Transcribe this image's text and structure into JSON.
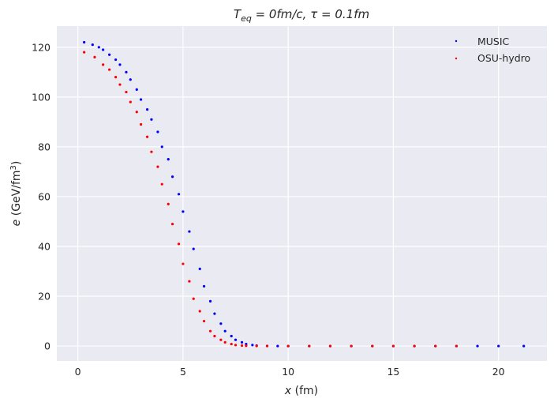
{
  "chart_data": {
    "type": "scatter",
    "title": {
      "base": "T",
      "sub": "eq",
      "rest": " = 0fm/c, τ = 0.1fm"
    },
    "xlabel": {
      "var": "x",
      "unit": " (fm)"
    },
    "ylabel": {
      "var": "e",
      "unit_open": " (GeV/fm",
      "sup": "3",
      "unit_close": ")"
    },
    "xlim": [
      -1,
      22.3
    ],
    "ylim": [
      -6,
      128.5
    ],
    "xticks": [
      0,
      5,
      10,
      15,
      20
    ],
    "xtick_labels": [
      "0",
      "5",
      "10",
      "15",
      "20"
    ],
    "yticks": [
      0,
      20,
      40,
      60,
      80,
      100,
      120
    ],
    "ytick_labels": [
      "0",
      "20",
      "40",
      "60",
      "80",
      "100",
      "120"
    ],
    "grid": true,
    "legend_position": "top-right",
    "colors": {
      "background": "#eaeaf2",
      "grid": "#ffffff",
      "MUSIC": "#0000ff",
      "OSU-hydro": "#ff0000"
    },
    "series": [
      {
        "name": "MUSIC",
        "color": "#0000ff",
        "x": [
          0.3,
          0.7,
          1.0,
          1.2,
          1.5,
          1.8,
          2.0,
          2.3,
          2.5,
          2.8,
          3.0,
          3.3,
          3.5,
          3.8,
          4.0,
          4.3,
          4.5,
          4.8,
          5.0,
          5.3,
          5.5,
          5.8,
          6.0,
          6.3,
          6.5,
          6.8,
          7.0,
          7.3,
          7.5,
          7.8,
          8.0,
          8.3,
          8.5,
          9.0,
          9.5,
          10,
          11,
          12,
          13,
          14,
          15,
          16,
          17,
          18,
          19,
          20,
          21.2
        ],
        "y": [
          122,
          121,
          120,
          119,
          117,
          115,
          113,
          110,
          107,
          103,
          99,
          95,
          91,
          86,
          80,
          75,
          68,
          61,
          54,
          46,
          39,
          31,
          24,
          18,
          13,
          9,
          6,
          4,
          2.5,
          1.5,
          0.8,
          0.4,
          0.2,
          0.05,
          0,
          0,
          0,
          0,
          0,
          0,
          0,
          0,
          0,
          0,
          0,
          0,
          0
        ]
      },
      {
        "name": "OSU-hydro",
        "color": "#ff0000",
        "x": [
          0.3,
          0.8,
          1.2,
          1.5,
          1.8,
          2.0,
          2.3,
          2.5,
          2.8,
          3.0,
          3.3,
          3.5,
          3.8,
          4.0,
          4.3,
          4.5,
          4.8,
          5.0,
          5.3,
          5.5,
          5.8,
          6.0,
          6.3,
          6.5,
          6.8,
          7.0,
          7.3,
          7.5,
          7.8,
          8.0,
          8.5,
          9.0,
          10,
          11,
          12,
          13,
          14,
          15,
          16,
          17,
          18
        ],
        "y": [
          118,
          116,
          113,
          111,
          108,
          105,
          102,
          98,
          94,
          89,
          84,
          78,
          72,
          65,
          57,
          49,
          41,
          33,
          26,
          19,
          14,
          10,
          6,
          4,
          2.5,
          1.5,
          0.8,
          0.4,
          0.2,
          0.1,
          0.02,
          0,
          0,
          0,
          0,
          0,
          0,
          0,
          0,
          0,
          0
        ]
      }
    ]
  }
}
